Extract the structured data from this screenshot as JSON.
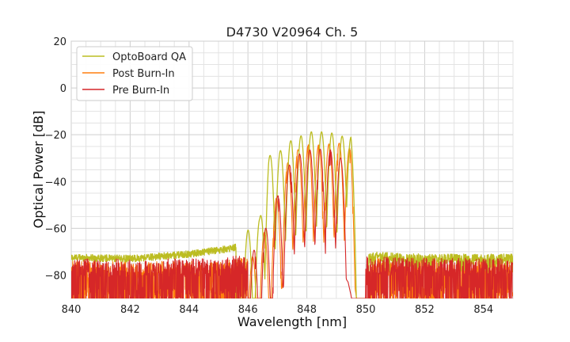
{
  "chart_data": {
    "type": "line",
    "title": "D4730 V20964 Ch. 5",
    "xlabel": "Wavelength [nm]",
    "ylabel": "Optical Power [dB]",
    "xlim": [
      840,
      855
    ],
    "ylim": [
      -90,
      20
    ],
    "xticks": [
      840,
      842,
      844,
      846,
      848,
      850,
      852,
      854
    ],
    "yticks": [
      20,
      0,
      -20,
      -40,
      -60,
      -80
    ],
    "grid": true,
    "legend_position": "top-left",
    "series": [
      {
        "name": "OptoBoard QA",
        "color": "#bcbd22",
        "noise_floor": [
          [
            840,
            -72.5
          ],
          [
            842,
            -73
          ],
          [
            844,
            -71
          ],
          [
            845.2,
            -69
          ],
          [
            845.6,
            -68
          ]
        ],
        "envelope": [
          [
            845.6,
            -68
          ],
          [
            845.9,
            -62
          ],
          [
            846.4,
            -56
          ],
          [
            846.7,
            -29
          ],
          [
            847.0,
            -28
          ],
          [
            847.5,
            -22
          ],
          [
            848.2,
            -18.5
          ],
          [
            848.8,
            -19
          ],
          [
            849.1,
            -20.5
          ],
          [
            849.5,
            -21
          ],
          [
            849.7,
            -48
          ],
          [
            849.85,
            -68
          ],
          [
            850.1,
            -72
          ]
        ],
        "noise_floor_right": [
          [
            850.1,
            -72
          ],
          [
            852,
            -73
          ],
          [
            855,
            -73
          ]
        ],
        "peaks": [
          846.0,
          846.4,
          846.75,
          847.1,
          847.45,
          847.8,
          848.15,
          848.5,
          848.85,
          849.2,
          849.5
        ]
      },
      {
        "name": "Post Burn-In",
        "color": "#ff7f0e",
        "noise_floor": [
          [
            840,
            -78
          ],
          [
            845,
            -78
          ],
          [
            846,
            -76
          ]
        ],
        "envelope": [
          [
            846.0,
            -76
          ],
          [
            846.4,
            -66
          ],
          [
            846.8,
            -55
          ],
          [
            847.2,
            -35
          ],
          [
            847.6,
            -27
          ],
          [
            848.1,
            -24
          ],
          [
            848.6,
            -24.5
          ],
          [
            849.0,
            -23
          ],
          [
            849.5,
            -26
          ],
          [
            849.9,
            -60
          ],
          [
            850.1,
            -75
          ]
        ],
        "noise_floor_right": [
          [
            850.1,
            -76
          ],
          [
            855,
            -78
          ]
        ],
        "peaks": [
          846.15,
          846.55,
          846.95,
          847.35,
          847.7,
          848.05,
          848.4,
          848.75,
          849.1,
          849.45
        ]
      },
      {
        "name": "Pre Burn-In",
        "color": "#d62728",
        "noise_floor": [
          [
            840,
            -77
          ],
          [
            845,
            -77
          ],
          [
            846,
            -75
          ]
        ],
        "envelope": [
          [
            846.0,
            -75
          ],
          [
            846.4,
            -64
          ],
          [
            846.8,
            -56
          ],
          [
            847.2,
            -37
          ],
          [
            847.6,
            -29
          ],
          [
            848.1,
            -26.5
          ],
          [
            848.6,
            -26
          ],
          [
            849.0,
            -27
          ],
          [
            849.4,
            -35
          ],
          [
            849.8,
            -58
          ],
          [
            850.0,
            -76
          ]
        ],
        "noise_floor_right": [
          [
            850.0,
            -76
          ],
          [
            855,
            -77
          ]
        ],
        "peaks": [
          846.2,
          846.6,
          847.0,
          847.4,
          847.75,
          848.1,
          848.45,
          848.8,
          849.15
        ]
      }
    ]
  }
}
